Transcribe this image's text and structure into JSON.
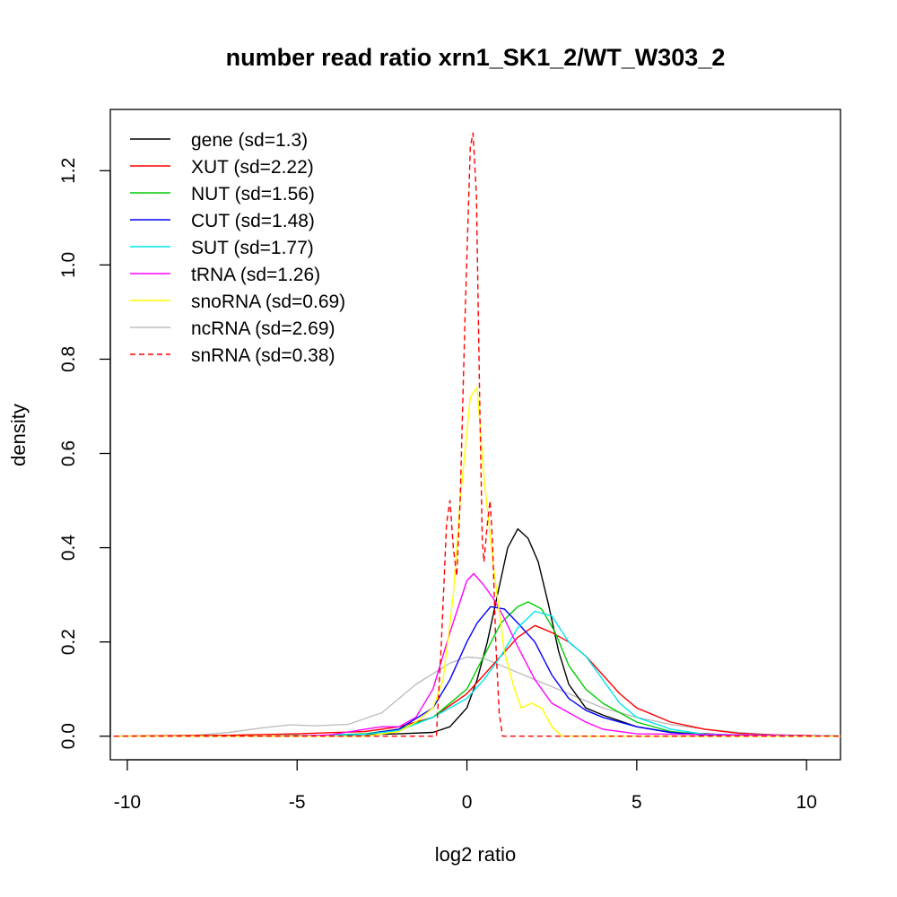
{
  "chart_data": {
    "type": "line",
    "title": "number read ratio xrn1_SK1_2/WT_W303_2",
    "xlabel": "log2 ratio",
    "ylabel": "density",
    "xlim": [
      -10.5,
      11.0
    ],
    "ylim": [
      -0.05,
      1.33
    ],
    "x_ticks": [
      -10,
      -5,
      0,
      5,
      10
    ],
    "x_tick_labels": [
      "-10",
      "-5",
      "0",
      "5",
      "10"
    ],
    "y_ticks": [
      0.0,
      0.2,
      0.4,
      0.6,
      0.8,
      1.0,
      1.2
    ],
    "y_tick_labels": [
      "0.0",
      "0.2",
      "0.4",
      "0.6",
      "0.8",
      "1.0",
      "1.2"
    ],
    "grid": false,
    "legend_position": "top-left",
    "series": [
      {
        "name": "gene (sd=1.3)",
        "color": "#000000",
        "dash": "solid",
        "points": [
          [
            -10.4,
            0
          ],
          [
            -6,
            0
          ],
          [
            -4,
            0.002
          ],
          [
            -2,
            0.005
          ],
          [
            -1,
            0.008
          ],
          [
            -0.5,
            0.02
          ],
          [
            0,
            0.06
          ],
          [
            0.3,
            0.12
          ],
          [
            0.6,
            0.2
          ],
          [
            0.9,
            0.3
          ],
          [
            1.2,
            0.4
          ],
          [
            1.5,
            0.44
          ],
          [
            1.8,
            0.42
          ],
          [
            2.1,
            0.37
          ],
          [
            2.4,
            0.28
          ],
          [
            2.7,
            0.18
          ],
          [
            3.0,
            0.11
          ],
          [
            3.5,
            0.06
          ],
          [
            4.0,
            0.045
          ],
          [
            5.0,
            0.02
          ],
          [
            6.0,
            0.008
          ],
          [
            8.0,
            0.002
          ],
          [
            11.0,
            0
          ]
        ]
      },
      {
        "name": "XUT (sd=2.22)",
        "color": "#ff0000",
        "dash": "solid",
        "points": [
          [
            -10.4,
            0
          ],
          [
            -7,
            0.002
          ],
          [
            -5,
            0.005
          ],
          [
            -3,
            0.01
          ],
          [
            -2,
            0.02
          ],
          [
            -1,
            0.04
          ],
          [
            0,
            0.09
          ],
          [
            0.5,
            0.13
          ],
          [
            1,
            0.17
          ],
          [
            1.5,
            0.21
          ],
          [
            2,
            0.235
          ],
          [
            2.5,
            0.22
          ],
          [
            3,
            0.2
          ],
          [
            3.5,
            0.17
          ],
          [
            4,
            0.13
          ],
          [
            4.5,
            0.09
          ],
          [
            5,
            0.06
          ],
          [
            6,
            0.03
          ],
          [
            7,
            0.015
          ],
          [
            8,
            0.006
          ],
          [
            9,
            0.003
          ],
          [
            11.0,
            0
          ]
        ]
      },
      {
        "name": "NUT (sd=1.56)",
        "color": "#00cc00",
        "dash": "solid",
        "points": [
          [
            -10.4,
            0
          ],
          [
            -5,
            0
          ],
          [
            -3,
            0.005
          ],
          [
            -2,
            0.015
          ],
          [
            -1,
            0.04
          ],
          [
            0,
            0.1
          ],
          [
            0.5,
            0.17
          ],
          [
            1,
            0.24
          ],
          [
            1.5,
            0.275
          ],
          [
            1.8,
            0.285
          ],
          [
            2.2,
            0.27
          ],
          [
            2.6,
            0.22
          ],
          [
            3,
            0.15
          ],
          [
            3.5,
            0.1
          ],
          [
            4,
            0.07
          ],
          [
            4.5,
            0.05
          ],
          [
            5,
            0.03
          ],
          [
            6,
            0.01
          ],
          [
            7,
            0.003
          ],
          [
            11.0,
            0
          ]
        ]
      },
      {
        "name": "CUT (sd=1.48)",
        "color": "#0000ff",
        "dash": "solid",
        "points": [
          [
            -10.4,
            0
          ],
          [
            -5,
            0
          ],
          [
            -3,
            0.004
          ],
          [
            -2,
            0.015
          ],
          [
            -1,
            0.06
          ],
          [
            -0.5,
            0.12
          ],
          [
            0,
            0.2
          ],
          [
            0.3,
            0.24
          ],
          [
            0.7,
            0.275
          ],
          [
            1.1,
            0.27
          ],
          [
            1.5,
            0.24
          ],
          [
            2,
            0.2
          ],
          [
            2.5,
            0.13
          ],
          [
            3,
            0.08
          ],
          [
            3.5,
            0.055
          ],
          [
            4,
            0.04
          ],
          [
            5,
            0.02
          ],
          [
            6,
            0.008
          ],
          [
            7,
            0.002
          ],
          [
            11.0,
            0
          ]
        ]
      },
      {
        "name": "SUT (sd=1.77)",
        "color": "#00e5ee",
        "dash": "solid",
        "points": [
          [
            -10.4,
            0
          ],
          [
            -5,
            0
          ],
          [
            -3,
            0.004
          ],
          [
            -2,
            0.012
          ],
          [
            -1,
            0.04
          ],
          [
            0,
            0.08
          ],
          [
            0.5,
            0.12
          ],
          [
            1,
            0.17
          ],
          [
            1.5,
            0.23
          ],
          [
            2,
            0.265
          ],
          [
            2.5,
            0.255
          ],
          [
            3,
            0.2
          ],
          [
            3.5,
            0.17
          ],
          [
            4,
            0.12
          ],
          [
            4.5,
            0.07
          ],
          [
            5,
            0.04
          ],
          [
            6,
            0.015
          ],
          [
            7,
            0.004
          ],
          [
            11.0,
            0
          ]
        ]
      },
      {
        "name": "tRNA (sd=1.26)",
        "color": "#ff00ff",
        "dash": "solid",
        "points": [
          [
            -10.4,
            0
          ],
          [
            -5,
            0
          ],
          [
            -4,
            0.003
          ],
          [
            -3,
            0.015
          ],
          [
            -2.5,
            0.02
          ],
          [
            -2,
            0.02
          ],
          [
            -1.5,
            0.04
          ],
          [
            -1,
            0.1
          ],
          [
            -0.5,
            0.22
          ],
          [
            0,
            0.33
          ],
          [
            0.2,
            0.345
          ],
          [
            0.5,
            0.32
          ],
          [
            0.8,
            0.29
          ],
          [
            1.1,
            0.25
          ],
          [
            1.5,
            0.19
          ],
          [
            2,
            0.12
          ],
          [
            2.5,
            0.07
          ],
          [
            3,
            0.05
          ],
          [
            3.5,
            0.03
          ],
          [
            4,
            0.015
          ],
          [
            5,
            0.005
          ],
          [
            11.0,
            0
          ]
        ]
      },
      {
        "name": "snoRNA (sd=0.69)",
        "color": "#ffff00",
        "dash": "solid",
        "points": [
          [
            -10.4,
            0
          ],
          [
            -3,
            0
          ],
          [
            -2,
            0.01
          ],
          [
            -1.5,
            0.03
          ],
          [
            -1,
            0.06
          ],
          [
            -0.7,
            0.12
          ],
          [
            -0.4,
            0.3
          ],
          [
            -0.2,
            0.5
          ],
          [
            0.1,
            0.72
          ],
          [
            0.3,
            0.74
          ],
          [
            0.5,
            0.55
          ],
          [
            0.8,
            0.35
          ],
          [
            1.1,
            0.18
          ],
          [
            1.4,
            0.1
          ],
          [
            1.6,
            0.06
          ],
          [
            1.9,
            0.07
          ],
          [
            2.2,
            0.06
          ],
          [
            2.5,
            0.02
          ],
          [
            2.8,
            0
          ],
          [
            11.0,
            0
          ]
        ]
      },
      {
        "name": "ncRNA (sd=2.69)",
        "color": "#bebebe",
        "dash": "solid",
        "points": [
          [
            -10.4,
            0
          ],
          [
            -8,
            0.002
          ],
          [
            -7,
            0.008
          ],
          [
            -6,
            0.018
          ],
          [
            -5.2,
            0.024
          ],
          [
            -4.5,
            0.022
          ],
          [
            -3.5,
            0.025
          ],
          [
            -2.5,
            0.05
          ],
          [
            -1.5,
            0.11
          ],
          [
            -0.5,
            0.155
          ],
          [
            0,
            0.168
          ],
          [
            0.5,
            0.165
          ],
          [
            1,
            0.15
          ],
          [
            2,
            0.12
          ],
          [
            3,
            0.09
          ],
          [
            4,
            0.06
          ],
          [
            5,
            0.04
          ],
          [
            6,
            0.025
          ],
          [
            7,
            0.015
          ],
          [
            8,
            0.008
          ],
          [
            9,
            0.003
          ],
          [
            11.0,
            0
          ]
        ]
      },
      {
        "name": "snRNA (sd=0.38)",
        "color": "#ff0000",
        "dash": "dashed",
        "points": [
          [
            -10.4,
            0
          ],
          [
            -0.9,
            0
          ],
          [
            -0.75,
            0.2
          ],
          [
            -0.6,
            0.45
          ],
          [
            -0.5,
            0.5
          ],
          [
            -0.4,
            0.4
          ],
          [
            -0.3,
            0.34
          ],
          [
            -0.2,
            0.5
          ],
          [
            -0.05,
            0.9
          ],
          [
            0.1,
            1.25
          ],
          [
            0.18,
            1.28
          ],
          [
            0.28,
            1.15
          ],
          [
            0.38,
            0.7
          ],
          [
            0.45,
            0.42
          ],
          [
            0.5,
            0.37
          ],
          [
            0.6,
            0.45
          ],
          [
            0.68,
            0.5
          ],
          [
            0.75,
            0.42
          ],
          [
            0.85,
            0.2
          ],
          [
            0.95,
            0.05
          ],
          [
            1.05,
            0
          ],
          [
            11.0,
            0
          ]
        ]
      }
    ]
  }
}
